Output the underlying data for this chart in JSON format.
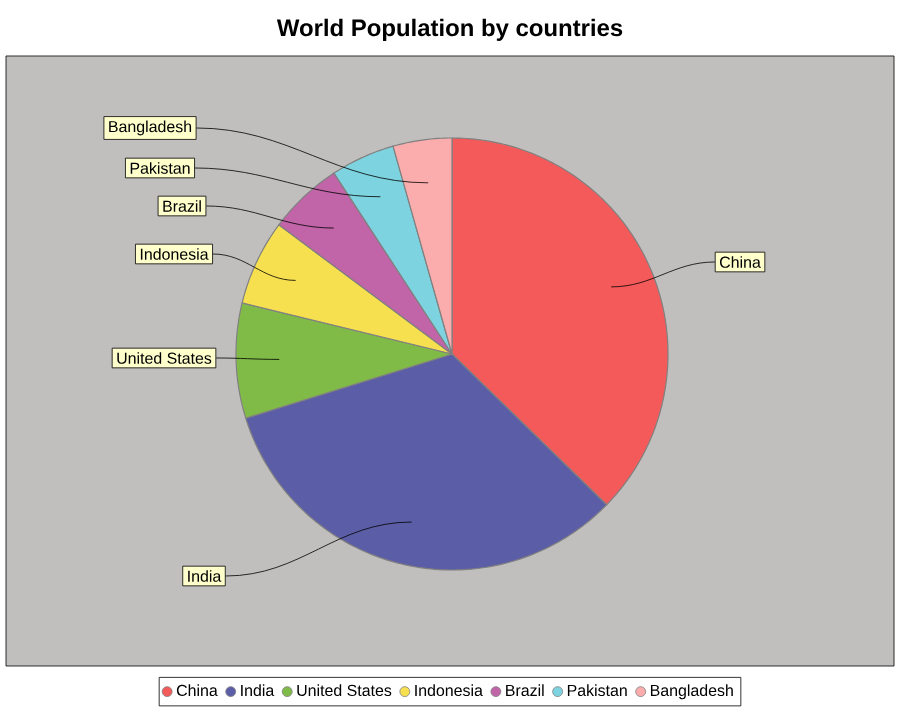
{
  "chart_data": {
    "type": "pie",
    "title": "World Population by countries",
    "categories": [
      "China",
      "India",
      "United States",
      "Indonesia",
      "Brazil",
      "Pakistan",
      "Bangladesh"
    ],
    "values": [
      37.3,
      32.9,
      8.6,
      6.4,
      5.6,
      4.8,
      4.4
    ],
    "colors": [
      "#f55a5a",
      "#5b5ea6",
      "#80bb48",
      "#f7e050",
      "#c164a8",
      "#7dd4e0",
      "#fbadad"
    ],
    "legend": "bottom"
  }
}
